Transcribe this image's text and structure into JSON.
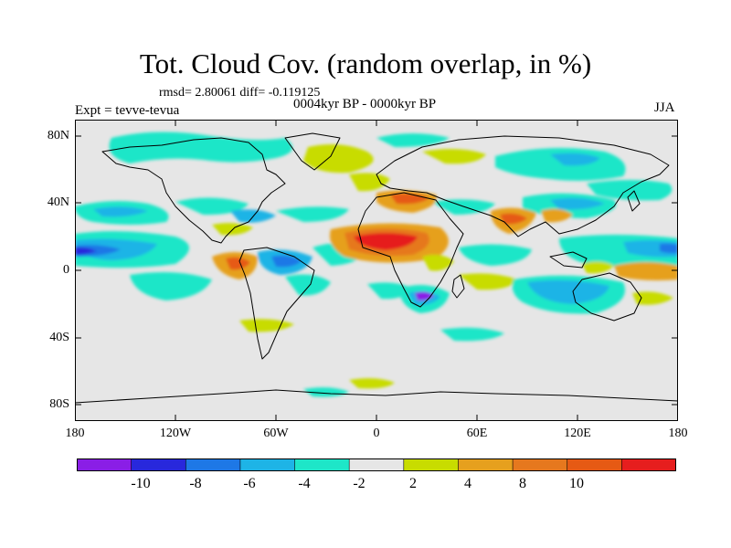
{
  "title": "Tot. Cloud Cov. (random overlap, in %)",
  "stats": "rmsd= 2.80061  diff= -0.119125",
  "period": "0004kyr BP - 0000kyr BP",
  "experiment": "Expt = tevve-tevua",
  "season": "JJA",
  "lat_ticks": [
    "80N",
    "40N",
    "0",
    "40S",
    "80S"
  ],
  "lon_ticks": [
    "180",
    "120W",
    "60W",
    "0",
    "60E",
    "120E",
    "180"
  ],
  "colorbar": {
    "colors": [
      "#8a1ee6",
      "#2828dc",
      "#1e78e6",
      "#1eb4e6",
      "#1ee6c8",
      "#e6e6e6",
      "#c8dc00",
      "#e6a01e",
      "#e6781e",
      "#e65a14",
      "#e61e1e"
    ],
    "labels": [
      "-10",
      "-8",
      "-6",
      "-4",
      "-2",
      "2",
      "4",
      "8",
      "10"
    ]
  }
}
